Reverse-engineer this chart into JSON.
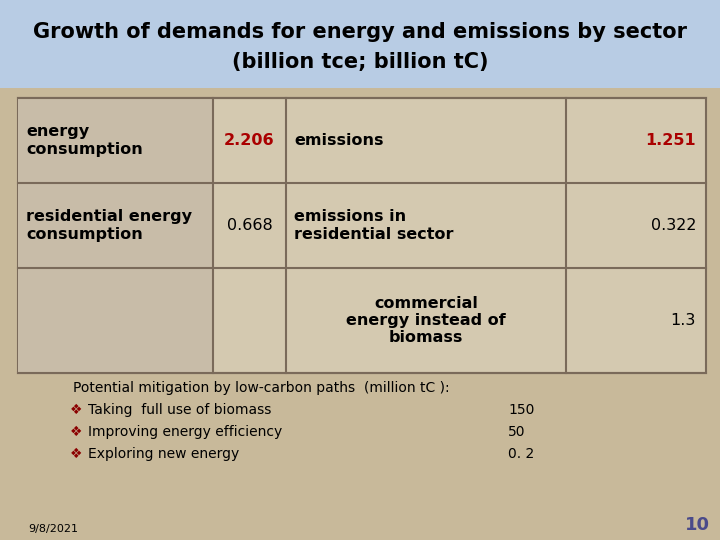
{
  "title_line1": "Growth of demands for energy and emissions by sector",
  "title_line2": "(billion tce; billion tC)",
  "title_bg": "#b8cce4",
  "slide_bg": "#c8b99a",
  "table_bg": "#d4c9b0",
  "table_border": "#7a6a5a",
  "title_color": "#000000",
  "red_color": "#aa0000",
  "black_color": "#000000",
  "left_col_bg": "#c8bca8",
  "row1": {
    "col1_text": "energy\nconsumption",
    "col2_text": "2.206",
    "col3_text": "emissions",
    "col4_text": "1.251",
    "col2_red": true,
    "col4_red": true
  },
  "row2": {
    "col1_text": "residential energy\nconsumption",
    "col2_text": "0.668",
    "col3_text": "emissions in\nresidential sector",
    "col4_text": "0.322",
    "col2_red": false,
    "col4_red": false
  },
  "row3": {
    "col1_text": "",
    "col2_text": "",
    "col3_text": "commercial\nenergy instead of\nbiomass",
    "col4_text": "1.3",
    "col2_red": false,
    "col4_red": false
  },
  "footer_line1": "Potential mitigation by low-carbon paths  (million tC ):",
  "footer_items": [
    {
      "text": "Taking  full use of biomass",
      "value": "150"
    },
    {
      "text": "Improving energy efficiency",
      "value": "50"
    },
    {
      "text": "Exploring new energy",
      "value": "0. 2"
    }
  ],
  "date_text": "9/8/2021",
  "page_num": "10",
  "bullet_color": "#8b0000",
  "font_size_title": 15,
  "font_size_table": 11.5,
  "font_size_footer": 10,
  "font_size_date": 8,
  "font_size_page": 13
}
